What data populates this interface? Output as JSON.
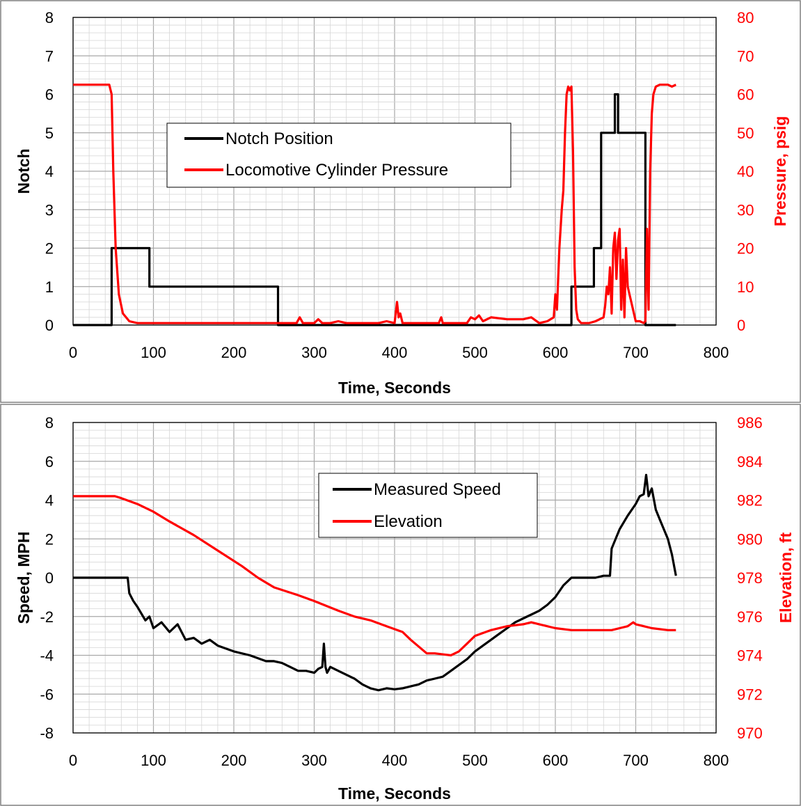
{
  "colors": {
    "primary": "#000000",
    "secondary": "#ff0000",
    "grid": "#c8c8c8",
    "frame": "#808080"
  },
  "chart_data": [
    {
      "type": "line",
      "xlabel": "Time, Seconds",
      "ylabel": "Notch",
      "y2label": "Pressure, psig",
      "xlim": [
        0,
        800
      ],
      "ylim": [
        0,
        8
      ],
      "y2lim": [
        0,
        80
      ],
      "xticks": [
        "0",
        "100",
        "200",
        "300",
        "400",
        "500",
        "600",
        "700",
        "800"
      ],
      "yticks": [
        "0",
        "1",
        "2",
        "3",
        "4",
        "5",
        "6",
        "7",
        "8"
      ],
      "y2ticks": [
        "0",
        "10",
        "20",
        "30",
        "40",
        "50",
        "60",
        "70",
        "80"
      ],
      "grid": true,
      "legend_position": "center-left",
      "series": [
        {
          "name": "Notch Position",
          "axis": "left",
          "color": "#000000",
          "x": [
            0,
            48,
            48,
            95,
            95,
            255,
            255,
            620,
            620,
            648,
            648,
            657,
            657,
            674,
            674,
            678,
            678,
            680,
            680,
            712,
            712,
            750
          ],
          "y": [
            0,
            0,
            2,
            2,
            1,
            1,
            0,
            0,
            1,
            1,
            2,
            2,
            5,
            5,
            6,
            6,
            5,
            5,
            5,
            5,
            0,
            0
          ]
        },
        {
          "name": "Locomotive Cylinder Pressure",
          "axis": "right",
          "color": "#ff0000",
          "x": [
            0,
            45,
            48,
            50,
            53,
            57,
            62,
            70,
            80,
            150,
            250,
            278,
            282,
            286,
            300,
            305,
            310,
            320,
            330,
            340,
            350,
            370,
            380,
            390,
            400,
            403,
            405,
            407,
            410,
            420,
            440,
            455,
            458,
            460,
            470,
            490,
            495,
            500,
            505,
            510,
            520,
            540,
            560,
            570,
            580,
            590,
            598,
            600,
            602,
            605,
            608,
            610,
            612,
            614,
            616,
            618,
            620,
            622,
            624,
            626,
            628,
            632,
            636,
            642,
            650,
            660,
            662,
            664,
            666,
            668,
            670,
            672,
            674,
            676,
            678,
            680,
            682,
            684,
            686,
            688,
            690,
            700,
            705,
            710,
            712,
            714,
            716,
            718,
            720,
            722,
            725,
            730,
            735,
            740,
            745,
            750
          ],
          "y": [
            62.5,
            62.5,
            60,
            40,
            20,
            8,
            3,
            1,
            0.5,
            0.5,
            0.5,
            0.5,
            2,
            0.5,
            0.5,
            1.5,
            0.5,
            0.5,
            1,
            0.5,
            0.5,
            0.5,
            0.5,
            1,
            0.5,
            6,
            2,
            3,
            0.5,
            0.5,
            0.5,
            0.5,
            2,
            0.5,
            0.5,
            0.5,
            2,
            1.5,
            2.5,
            1,
            2,
            1.5,
            1.5,
            2,
            0.5,
            1,
            2,
            8,
            4,
            20,
            30,
            35,
            50,
            60,
            62,
            61,
            62,
            45,
            15,
            4,
            1.5,
            0.5,
            0.5,
            0.5,
            1,
            2,
            5,
            10,
            8,
            15,
            3,
            20,
            24,
            12,
            22,
            25,
            4,
            17,
            2,
            20,
            10,
            1,
            1,
            0.5,
            1,
            25,
            4,
            40,
            55,
            60,
            62,
            62.5,
            62.5,
            62.5,
            62,
            62.5
          ]
        }
      ]
    },
    {
      "type": "line",
      "xlabel": "Time, Seconds",
      "ylabel": "Speed, MPH",
      "y2label": "Elevation, ft",
      "xlim": [
        0,
        800
      ],
      "ylim": [
        -8,
        8
      ],
      "y2lim": [
        970,
        986
      ],
      "xticks": [
        "0",
        "100",
        "200",
        "300",
        "400",
        "500",
        "600",
        "700",
        "800"
      ],
      "yticks": [
        "-8",
        "-6",
        "-4",
        "-2",
        "0",
        "2",
        "4",
        "6",
        "8"
      ],
      "y2ticks": [
        "970",
        "972",
        "974",
        "976",
        "978",
        "980",
        "982",
        "984",
        "986"
      ],
      "grid": true,
      "legend_position": "top-center",
      "series": [
        {
          "name": "Measured Speed",
          "axis": "left",
          "color": "#000000",
          "x": [
            0,
            60,
            68,
            70,
            75,
            80,
            90,
            95,
            100,
            110,
            120,
            130,
            140,
            150,
            160,
            170,
            180,
            200,
            220,
            240,
            250,
            260,
            270,
            280,
            290,
            300,
            305,
            310,
            312,
            314,
            316,
            320,
            330,
            340,
            350,
            360,
            370,
            380,
            390,
            400,
            410,
            420,
            430,
            440,
            450,
            460,
            470,
            480,
            490,
            500,
            510,
            520,
            530,
            540,
            550,
            560,
            570,
            580,
            590,
            600,
            610,
            620,
            625,
            630,
            640,
            650,
            660,
            668,
            670,
            675,
            680,
            690,
            700,
            705,
            710,
            713,
            716,
            720,
            725,
            730,
            740,
            745,
            750
          ],
          "y": [
            0,
            0,
            0,
            -0.8,
            -1.2,
            -1.5,
            -2.2,
            -2,
            -2.6,
            -2.3,
            -2.8,
            -2.4,
            -3.2,
            -3.1,
            -3.4,
            -3.2,
            -3.5,
            -3.8,
            -4,
            -4.3,
            -4.3,
            -4.4,
            -4.6,
            -4.8,
            -4.8,
            -4.9,
            -4.7,
            -4.6,
            -3.4,
            -4.6,
            -4.9,
            -4.6,
            -4.8,
            -5,
            -5.2,
            -5.5,
            -5.7,
            -5.8,
            -5.7,
            -5.75,
            -5.7,
            -5.6,
            -5.5,
            -5.3,
            -5.2,
            -5.1,
            -4.8,
            -4.5,
            -4.2,
            -3.8,
            -3.5,
            -3.2,
            -2.9,
            -2.6,
            -2.3,
            -2.1,
            -1.9,
            -1.7,
            -1.4,
            -1,
            -0.4,
            0,
            0,
            0,
            0,
            0,
            0.1,
            0.1,
            1.5,
            2,
            2.5,
            3.2,
            3.8,
            4.2,
            4.3,
            5.3,
            4.2,
            4.6,
            3.5,
            3,
            2,
            1.2,
            0.1
          ]
        },
        {
          "name": "Elevation",
          "axis": "right",
          "color": "#ff0000",
          "x": [
            0,
            52,
            60,
            80,
            100,
            120,
            150,
            180,
            210,
            230,
            250,
            280,
            300,
            330,
            350,
            370,
            390,
            410,
            420,
            440,
            450,
            470,
            480,
            490,
            500,
            520,
            540,
            560,
            570,
            580,
            600,
            620,
            650,
            670,
            680,
            690,
            697,
            700,
            710,
            720,
            740,
            750
          ],
          "y": [
            982.2,
            982.2,
            982.1,
            981.8,
            981.4,
            980.9,
            980.2,
            979.4,
            978.6,
            978,
            977.5,
            977.1,
            976.8,
            976.3,
            976,
            975.8,
            975.5,
            975.2,
            974.8,
            974.1,
            974.1,
            974,
            974.2,
            974.6,
            975,
            975.3,
            975.5,
            975.6,
            975.7,
            975.6,
            975.4,
            975.3,
            975.3,
            975.3,
            975.4,
            975.5,
            975.7,
            975.6,
            975.5,
            975.4,
            975.3,
            975.3
          ]
        }
      ]
    }
  ]
}
